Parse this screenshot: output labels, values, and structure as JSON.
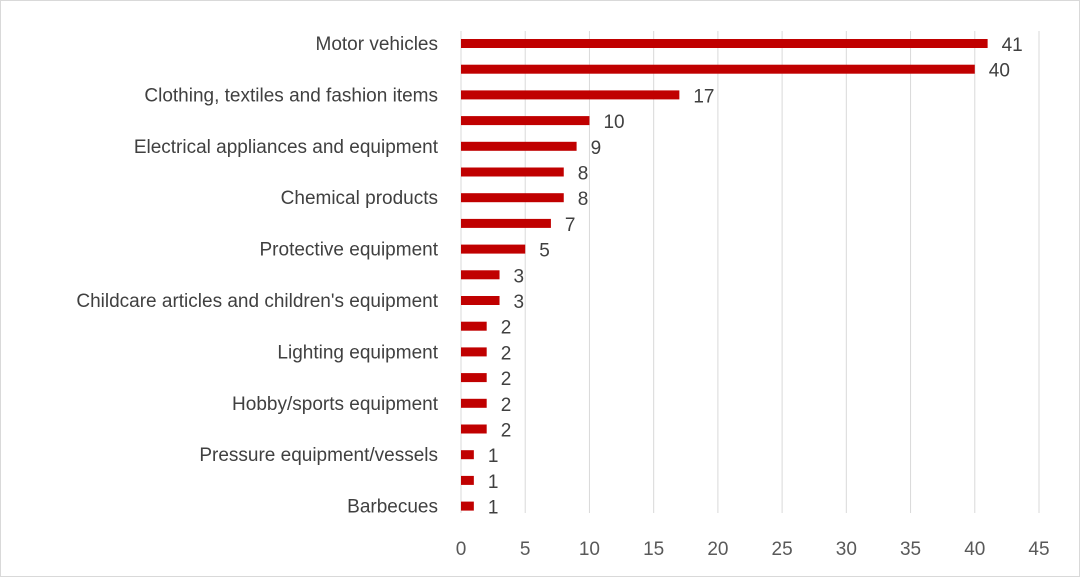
{
  "chart_data": {
    "type": "bar",
    "orientation": "horizontal",
    "title": "",
    "xlabel": "",
    "ylabel": "",
    "categories": [
      "Motor vehicles",
      "",
      "Clothing, textiles and fashion items",
      "",
      "Electrical appliances and equipment",
      "",
      "Chemical products",
      "",
      "Protective equipment",
      "",
      "Childcare articles and children's equipment",
      "",
      "Lighting equipment",
      "",
      "Hobby/sports equipment",
      "",
      "Pressure equipment/vessels",
      "",
      "Barbecues"
    ],
    "values": [
      41,
      40,
      17,
      10,
      9,
      8,
      8,
      7,
      5,
      3,
      3,
      2,
      2,
      2,
      2,
      2,
      1,
      1,
      1
    ],
    "data_labels": [
      "41",
      "40",
      "17",
      "10",
      "9",
      "8",
      "8",
      "7",
      "5",
      "3",
      "3",
      "2",
      "2",
      "2",
      "2",
      "2",
      "1",
      "1",
      "1"
    ],
    "xlim": [
      0,
      45
    ],
    "x_ticks": [
      "0",
      "5",
      "10",
      "15",
      "20",
      "25",
      "30",
      "35",
      "40",
      "45"
    ],
    "grid": true,
    "bar_color": "#c00000",
    "grid_color": "#d9d9d9",
    "legend": "none"
  }
}
